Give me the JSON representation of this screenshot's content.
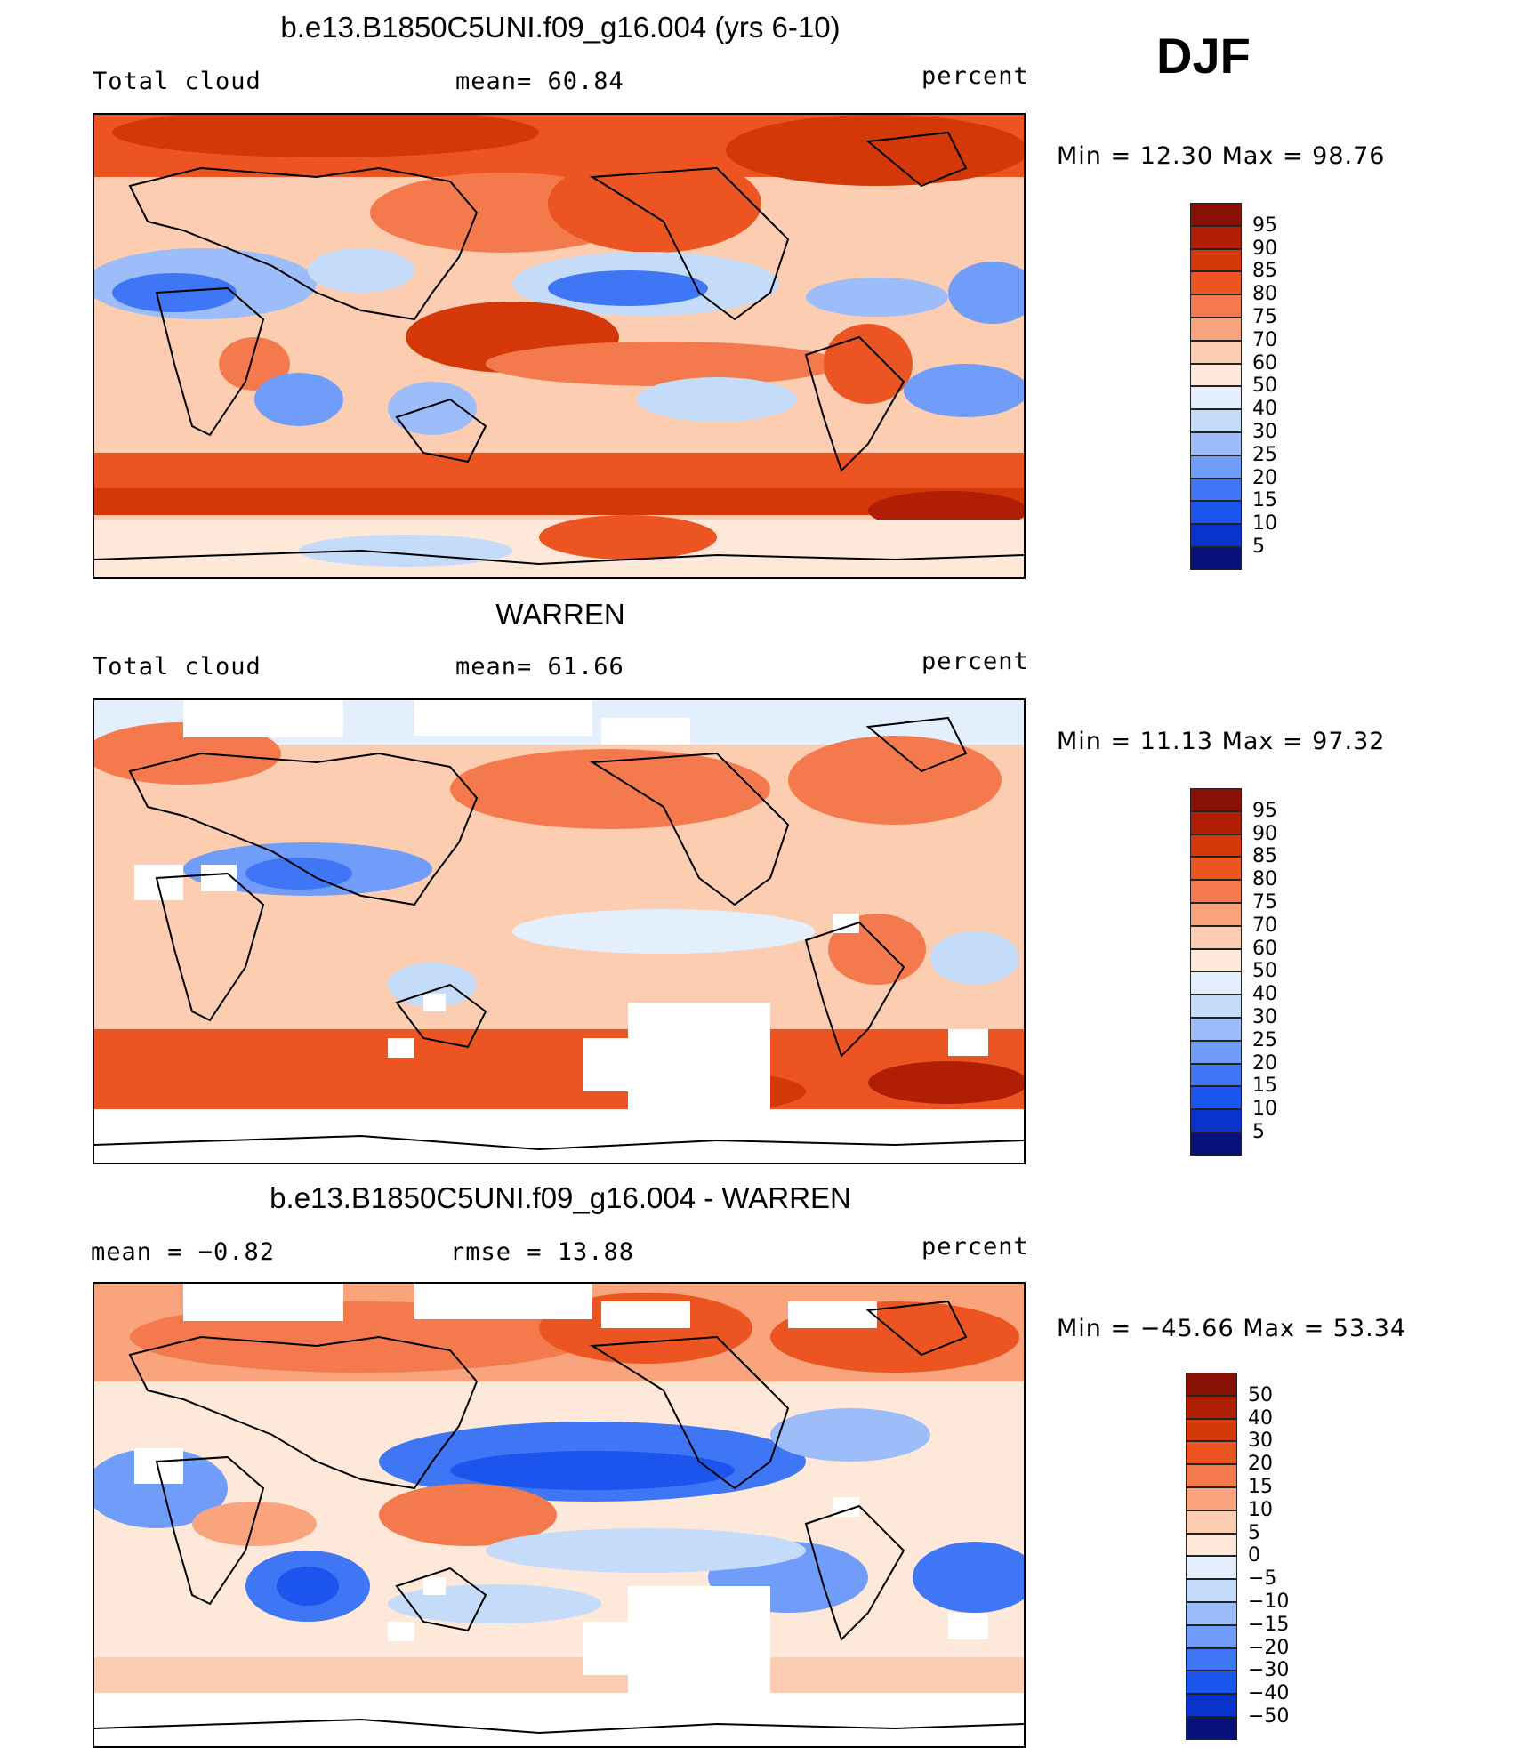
{
  "season_label": "DJF",
  "colors": {
    "abs_scale": [
      "#08107a",
      "#0a33cc",
      "#1c55ee",
      "#3f76f6",
      "#6f9df9",
      "#9cbdf9",
      "#c5dbfa",
      "#e4effd",
      "#fde8da",
      "#fccdb0",
      "#f9a47d",
      "#f47a4d",
      "#ec5421",
      "#d43708",
      "#b01f04",
      "#891005"
    ],
    "diff_scale": [
      "#08107a",
      "#0a33cc",
      "#1c55ee",
      "#3f76f6",
      "#6f9df9",
      "#9cbdf9",
      "#c5dbfa",
      "#e4effd",
      "#fde8da",
      "#fccdb0",
      "#f9a47d",
      "#f47a4d",
      "#ec5421",
      "#d43708",
      "#b01f04",
      "#891005"
    ],
    "missing": "#ffffff",
    "coast": "#000000"
  },
  "panels": [
    {
      "title": "b.e13.B1850C5UNI.f09_g16.004 (yrs 6-10)",
      "left_label": "Total cloud",
      "center_label": "mean=  60.84",
      "right_label": "percent",
      "minmax": "Min =   12.30 Max =   98.76",
      "colorbar_labels": [
        "95",
        "90",
        "85",
        "80",
        "75",
        "70",
        "60",
        "50",
        "40",
        "30",
        "25",
        "20",
        "15",
        "10",
        "5"
      ]
    },
    {
      "title": "WARREN",
      "left_label": "Total cloud",
      "center_label": "mean=  61.66",
      "right_label": "percent",
      "minmax": "Min =   11.13 Max =   97.32",
      "colorbar_labels": [
        "95",
        "90",
        "85",
        "80",
        "75",
        "70",
        "60",
        "50",
        "40",
        "30",
        "25",
        "20",
        "15",
        "10",
        "5"
      ]
    },
    {
      "title": "b.e13.B1850C5UNI.f09_g16.004 - WARREN",
      "left_label": "mean =   −0.82",
      "center_label": "rmse =   13.88",
      "right_label": "percent",
      "minmax": "Min = −45.66 Max =   53.34",
      "colorbar_labels": [
        "50",
        "40",
        "30",
        "20",
        "15",
        "10",
        "5",
        "0",
        "−5",
        "−10",
        "−15",
        "−20",
        "−30",
        "−40",
        "−50"
      ]
    }
  ]
}
